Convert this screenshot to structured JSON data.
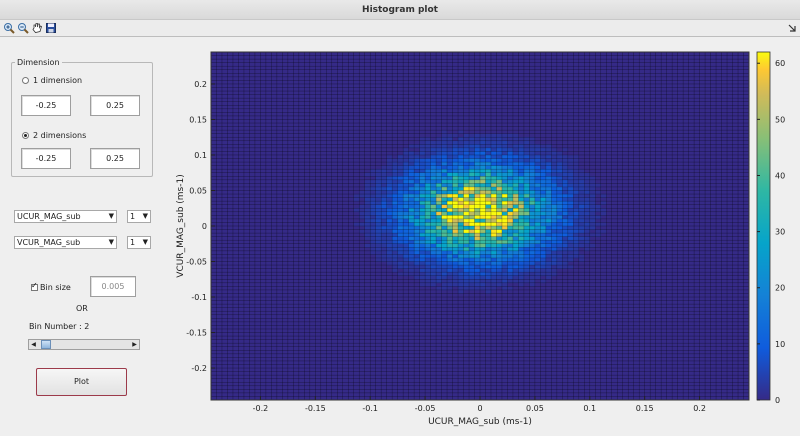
{
  "window": {
    "title": "Histogram plot"
  },
  "toolbar": {
    "tools": [
      {
        "icon": "zoom-in-icon"
      },
      {
        "icon": "zoom-out-icon"
      },
      {
        "icon": "pan-hand-icon"
      },
      {
        "icon": "save-disk-icon"
      }
    ]
  },
  "dimension": {
    "legend": "Dimension",
    "one_dim": {
      "label": "1 dimension",
      "min": "-0.25",
      "max": "0.25",
      "selected": false
    },
    "two_dim": {
      "label": "2 dimensions",
      "min": "-0.25",
      "max": "0.25",
      "selected": true
    }
  },
  "variables": [
    {
      "name": "UCUR_MAG_sub",
      "index": "1"
    },
    {
      "name": "VCUR_MAG_sub",
      "index": "1"
    }
  ],
  "bin": {
    "label": "Bin size",
    "checked": true,
    "value": "0.005",
    "or_label": "OR",
    "number_label": "Bin Number : 2",
    "slider_fraction": 0.1
  },
  "plot_button": {
    "label": "Plot"
  },
  "colors": {
    "background": "#efefef",
    "plot_border": "#333333"
  },
  "chart_data": {
    "type": "heatmap",
    "colormap": "parula",
    "xlabel": "UCUR_MAG_sub (ms-1)",
    "ylabel": "VCUR_MAG_sub (ms-1)",
    "xlim": [
      -0.245,
      0.245
    ],
    "ylim": [
      -0.245,
      0.245
    ],
    "xticks": [
      "-0.2",
      "-0.15",
      "-0.1",
      "-0.05",
      "0",
      "0.05",
      "0.1",
      "0.15",
      "0.2"
    ],
    "xtick_values": [
      -0.2,
      -0.15,
      -0.1,
      -0.05,
      0,
      0.05,
      0.1,
      0.15,
      0.2
    ],
    "yticks": [
      "0.2",
      "0.15",
      "0.1",
      "0.05",
      "0",
      "-0.05",
      "-0.1",
      "-0.15",
      "-0.2"
    ],
    "ytick_values": [
      0.2,
      0.15,
      0.1,
      0.05,
      0,
      -0.05,
      -0.1,
      -0.15,
      -0.2
    ],
    "bin_size": 0.005,
    "peak": {
      "x": 0.0,
      "y": 0.02,
      "count": 62
    },
    "spread": {
      "x": 0.04,
      "y": 0.04
    },
    "colorbar": {
      "min": 0,
      "max": 62,
      "ticks": [
        "60",
        "50",
        "40",
        "30",
        "20",
        "10",
        "0"
      ],
      "tick_values": [
        60,
        50,
        40,
        30,
        20,
        10,
        0
      ]
    }
  }
}
